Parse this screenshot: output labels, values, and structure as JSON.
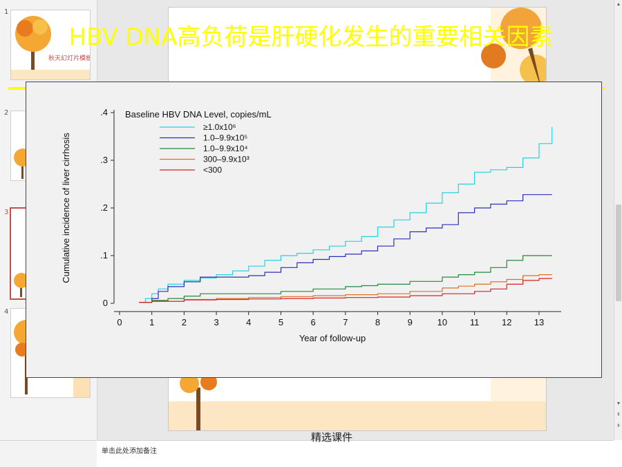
{
  "thumbnails": [
    {
      "num": "1",
      "title": "秋天幻灯片模板"
    },
    {
      "num": "2"
    },
    {
      "num": "3"
    },
    {
      "num": "4"
    }
  ],
  "slide": {
    "title": "HBV DNA高负荷是肝硬化发生的重要相关因素",
    "footer": "精选课件"
  },
  "notes": {
    "placeholder": "单击此处添加备注"
  },
  "colors": {
    "title": "#ffff00",
    "accent": "#c0504d"
  },
  "icons": {
    "scroll_up": "triangle-up",
    "scroll_down": "triangle-down"
  },
  "chart_data": {
    "type": "line",
    "xlabel": "Year of follow-up",
    "ylabel": "Cumulative incidence of liver cirrhosis",
    "xlim": [
      0,
      13.6
    ],
    "ylim": [
      0,
      0.4
    ],
    "xticks": [
      "0",
      "1",
      "2",
      "3",
      "4",
      "5",
      "6",
      "7",
      "8",
      "9",
      "10",
      "11",
      "12",
      "13"
    ],
    "yticks": [
      "0",
      ".1",
      ".2",
      ".3",
      ".4"
    ],
    "legend_title": "Baseline HBV DNA Level, copies/mL",
    "legend_position": "top-left",
    "series": [
      {
        "name": "≥1.0x10⁶",
        "color": "#22d3e0",
        "x": [
          0.6,
          0.8,
          1.0,
          1.2,
          1.5,
          2.0,
          2.5,
          3.0,
          3.5,
          4.0,
          4.5,
          5.0,
          5.5,
          6.0,
          6.5,
          7.0,
          7.5,
          8.0,
          8.5,
          9.0,
          9.5,
          10.0,
          10.5,
          11.0,
          11.5,
          12.0,
          12.5,
          13.0,
          13.4
        ],
        "values": [
          0.002,
          0.01,
          0.02,
          0.03,
          0.04,
          0.048,
          0.053,
          0.06,
          0.068,
          0.078,
          0.09,
          0.1,
          0.105,
          0.112,
          0.12,
          0.13,
          0.14,
          0.16,
          0.175,
          0.19,
          0.21,
          0.232,
          0.25,
          0.275,
          0.28,
          0.285,
          0.305,
          0.335,
          0.37
        ]
      },
      {
        "name": "1.0–9.9x10⁵",
        "color": "#2a2fb8",
        "x": [
          0.6,
          1.0,
          1.2,
          1.5,
          2.0,
          2.5,
          3.0,
          3.5,
          4.0,
          4.5,
          5.0,
          5.5,
          6.0,
          6.5,
          7.0,
          7.5,
          8.0,
          8.5,
          9.0,
          9.5,
          10.0,
          10.5,
          11.0,
          11.5,
          12.0,
          12.5,
          13.0,
          13.4
        ],
        "values": [
          0.002,
          0.01,
          0.025,
          0.035,
          0.045,
          0.055,
          0.055,
          0.055,
          0.058,
          0.065,
          0.075,
          0.085,
          0.092,
          0.098,
          0.103,
          0.11,
          0.12,
          0.135,
          0.15,
          0.158,
          0.165,
          0.19,
          0.2,
          0.208,
          0.215,
          0.228,
          0.228,
          0.228
        ]
      },
      {
        "name": "1.0–9.9x10⁴",
        "color": "#1f8a3a",
        "x": [
          0.6,
          1.0,
          1.5,
          2.0,
          2.5,
          3.0,
          4.0,
          5.0,
          6.0,
          7.0,
          7.5,
          8.0,
          9.0,
          10.0,
          10.5,
          11.0,
          11.5,
          12.0,
          12.5,
          13.0,
          13.4
        ],
        "values": [
          0.002,
          0.006,
          0.01,
          0.015,
          0.02,
          0.02,
          0.02,
          0.025,
          0.03,
          0.035,
          0.037,
          0.04,
          0.046,
          0.055,
          0.06,
          0.065,
          0.075,
          0.09,
          0.1,
          0.1,
          0.1
        ]
      },
      {
        "name": "300–9.9x10³",
        "color": "#e0701e",
        "x": [
          0.6,
          1.0,
          2.0,
          3.0,
          4.0,
          5.0,
          6.0,
          7.0,
          8.0,
          9.0,
          10.0,
          10.5,
          11.0,
          11.5,
          12.0,
          12.5,
          13.0,
          13.4
        ],
        "values": [
          0.002,
          0.004,
          0.008,
          0.01,
          0.012,
          0.014,
          0.016,
          0.018,
          0.02,
          0.025,
          0.032,
          0.036,
          0.04,
          0.045,
          0.05,
          0.058,
          0.06,
          0.06
        ]
      },
      {
        "name": "<300",
        "color": "#d92020",
        "x": [
          0.6,
          1.0,
          2.0,
          3.0,
          4.0,
          5.0,
          6.0,
          7.0,
          8.0,
          9.0,
          10.0,
          11.0,
          11.5,
          12.0,
          12.5,
          13.0,
          13.4
        ],
        "values": [
          0.002,
          0.004,
          0.007,
          0.008,
          0.009,
          0.01,
          0.011,
          0.012,
          0.013,
          0.016,
          0.02,
          0.025,
          0.03,
          0.04,
          0.048,
          0.052,
          0.052
        ]
      }
    ]
  }
}
